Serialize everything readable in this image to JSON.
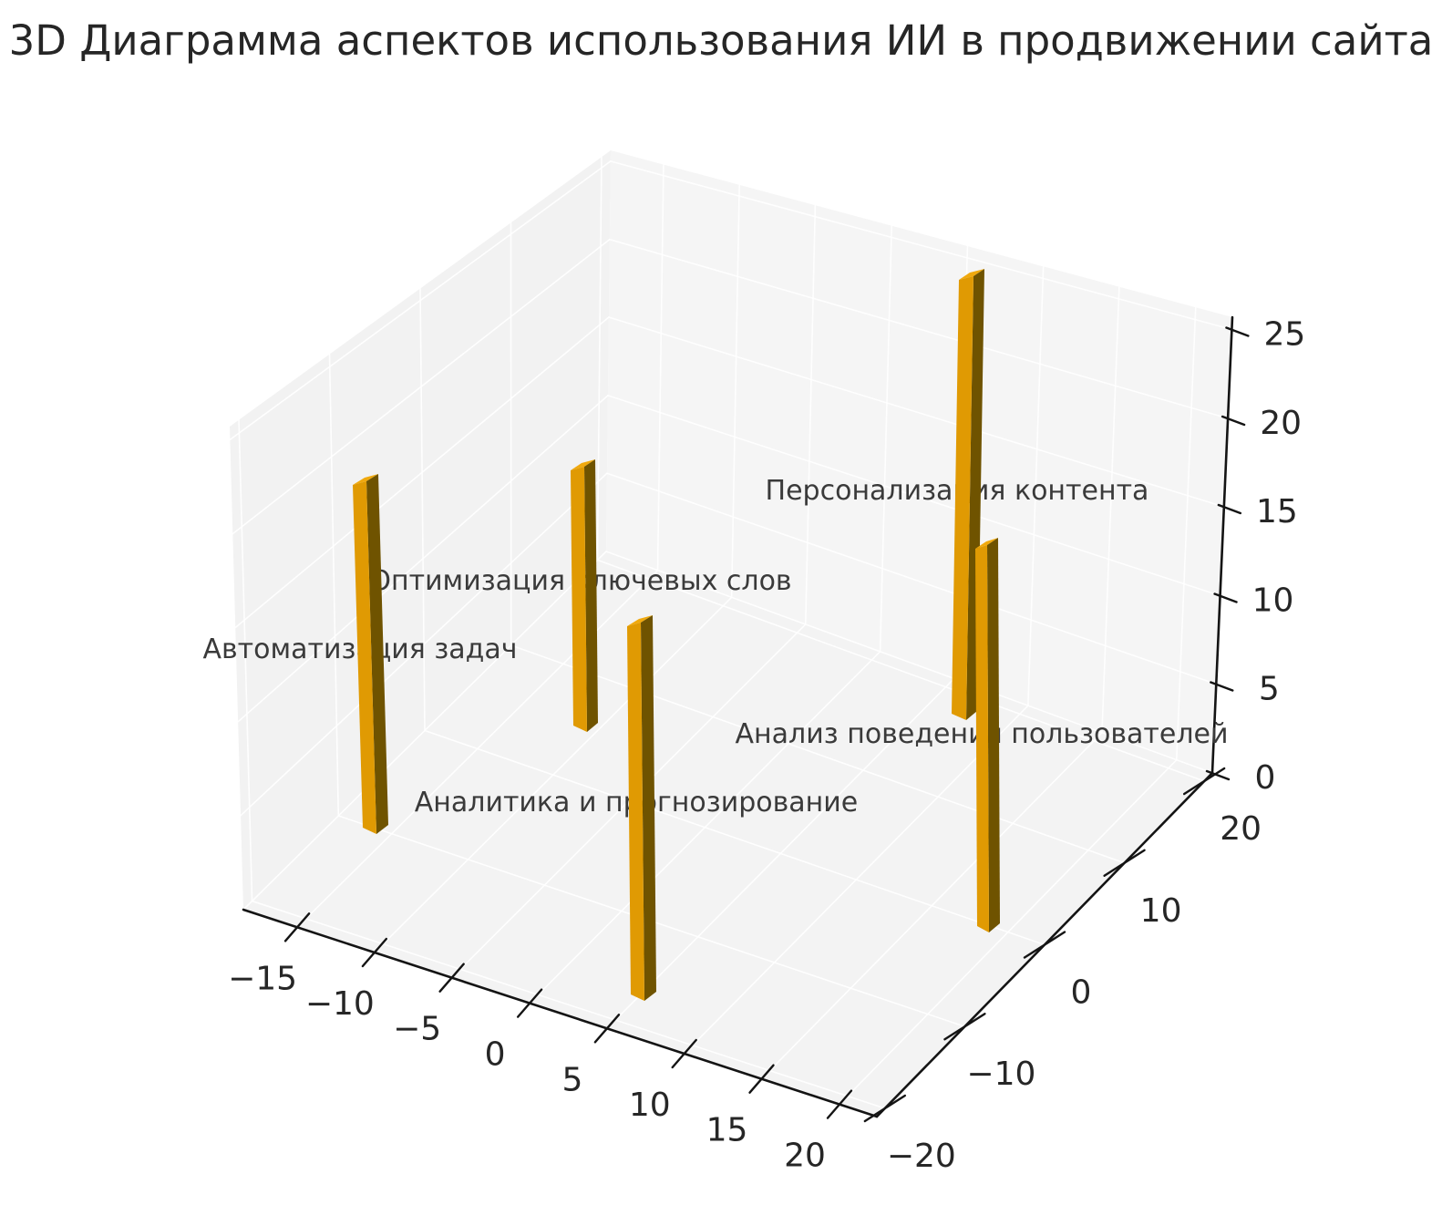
{
  "title": "3D Диаграмма аспектов использования ИИ в продвижении сайта",
  "chart_data": {
    "type": "bar",
    "subtype": "bar3d",
    "title": "3D Диаграмма аспектов использования ИИ в продвижении сайта",
    "series": [
      {
        "label": "Автоматизация задач",
        "value": 19,
        "x": -17,
        "y": -10
      },
      {
        "label": "Оптимизация ключевых слов",
        "value": 16,
        "x": -12,
        "y": 6
      },
      {
        "label": "Аналитика и прогнозирование",
        "value": 18,
        "x": 4,
        "y": -17
      },
      {
        "label": "Персонализация контента",
        "value": 25,
        "x": 6,
        "y": 18
      },
      {
        "label": "Анализ поведения пользователей",
        "value": 20,
        "x": 18,
        "y": -1
      }
    ],
    "xlabel": "",
    "ylabel": "",
    "zlabel": "",
    "axes": {
      "x_ticks": [
        -15,
        -10,
        -5,
        0,
        5,
        10,
        15,
        20
      ],
      "x_tick_labels": [
        "−15",
        "−10",
        "−5",
        "0",
        "5",
        "10",
        "15",
        "20"
      ],
      "y_ticks": [
        -20,
        -10,
        0,
        10,
        20
      ],
      "y_tick_labels": [
        "−20",
        "−10",
        "0",
        "10",
        "20"
      ],
      "z_ticks": [
        0,
        5,
        10,
        15,
        20,
        25
      ],
      "z_tick_labels": [
        "0",
        "5",
        "10",
        "15",
        "20",
        "25"
      ],
      "xlim": [
        -19,
        21
      ],
      "ylim": [
        -21,
        21
      ],
      "zlim": [
        0,
        26
      ],
      "grid": true,
      "legend": false
    },
    "style": {
      "bar_color_front": "#E09A03",
      "bar_color_side": "#6F5300",
      "bar_color_top": "#F0A90E",
      "pane_color_left": "#f2f2f2",
      "pane_color_right": "#f5f5f5",
      "pane_color_floor": "#f3f3f3",
      "gridline_color": "#ffffff",
      "spine_color": "#141414",
      "background": "#ffffff"
    }
  }
}
